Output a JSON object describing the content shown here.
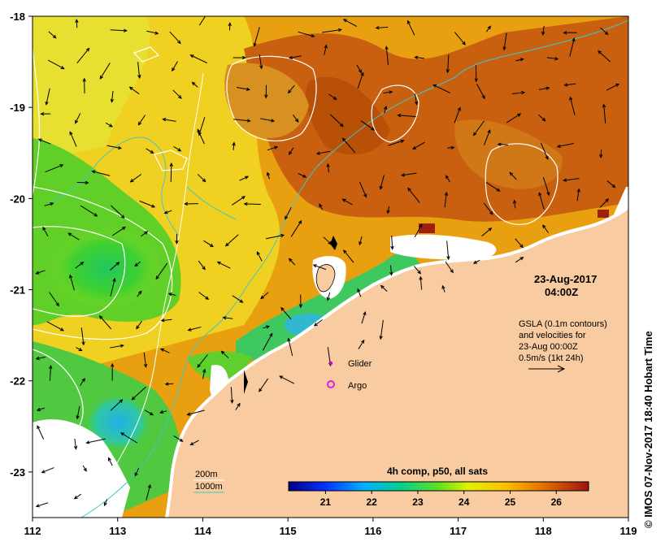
{
  "map": {
    "lon_range": [
      112,
      119
    ],
    "lat_range": [
      -23.5,
      -18
    ],
    "x_ticks": [
      112,
      113,
      114,
      115,
      116,
      117,
      118,
      119
    ],
    "x_tick_labels": [
      "112",
      "113",
      "114",
      "115",
      "116",
      "117",
      "118",
      "119"
    ],
    "y_ticks": [
      -18,
      -19,
      -20,
      -21,
      -22,
      -23
    ],
    "y_tick_labels": [
      "-18",
      "-19",
      "-20",
      "-21",
      "-22",
      "-23"
    ],
    "land_color": "#f8cba0",
    "contour_color": "#ffffff",
    "isobath_color": "#40c8c8"
  },
  "timestamp": {
    "date": "23-Aug-2017",
    "time": "04:00Z"
  },
  "gsla_note": {
    "line1": "GSLA (0.1m contours)",
    "line2": "and velocities for",
    "line3": "23-Aug 00:00Z",
    "line4": "0.5m/s (1kt 24h)"
  },
  "legend": {
    "glider": "Glider",
    "argo": "Argo",
    "glider_color": "#d000d0",
    "argo_color": "#e020e0"
  },
  "isobaths": {
    "label_200": "200m",
    "label_1000": "1000m"
  },
  "colorbar": {
    "title": "4h comp, p50, all sats",
    "ticks": [
      21,
      22,
      23,
      24,
      25,
      26
    ],
    "tick_labels": [
      "21",
      "22",
      "23",
      "24",
      "25",
      "26"
    ],
    "range": [
      20.2,
      26.7
    ]
  },
  "credit": "© IMOS 07-Nov-2017 18:40 Hobart Time"
}
